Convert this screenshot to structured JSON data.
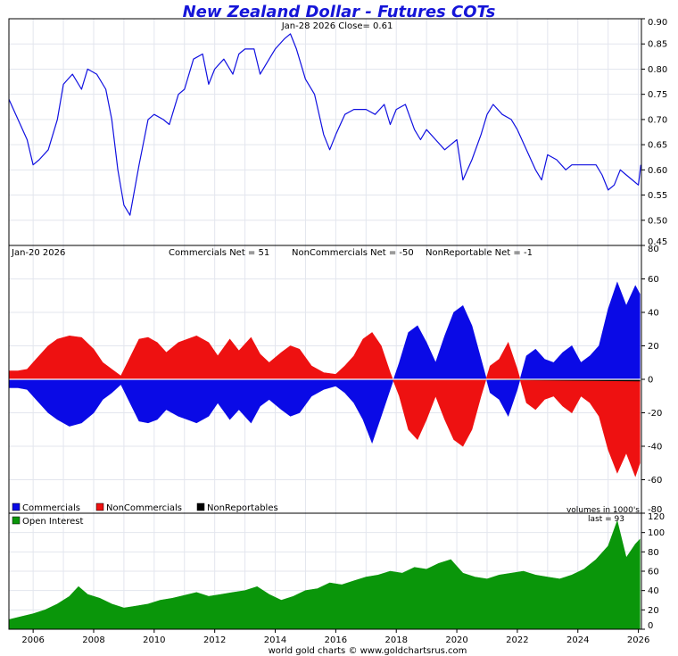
{
  "chart_data": [
    {
      "type": "line",
      "panel": "price",
      "title": "New Zealand Dollar - Futures COTs",
      "annotation": "Jan-28  2026   Close= 0.61",
      "ylim": [
        0.45,
        0.9
      ],
      "yticks": [
        "0.45",
        "0.50",
        "0.55",
        "0.60",
        "0.65",
        "0.70",
        "0.75",
        "0.80",
        "0.85",
        "0.90"
      ],
      "xlim": [
        2005.2,
        2026.1
      ],
      "series": [
        {
          "color": "#1010e0",
          "x": [
            2005.2,
            2005.5,
            2005.8,
            2006.0,
            2006.2,
            2006.5,
            2006.8,
            2007.0,
            2007.3,
            2007.6,
            2007.8,
            2008.1,
            2008.4,
            2008.6,
            2008.8,
            2009.0,
            2009.2,
            2009.5,
            2009.8,
            2010.0,
            2010.3,
            2010.5,
            2010.8,
            2011.0,
            2011.3,
            2011.6,
            2011.8,
            2012.0,
            2012.3,
            2012.6,
            2012.8,
            2013.0,
            2013.3,
            2013.5,
            2013.8,
            2014.0,
            2014.3,
            2014.5,
            2014.7,
            2015.0,
            2015.3,
            2015.6,
            2015.8,
            2016.0,
            2016.3,
            2016.6,
            2016.8,
            2017.0,
            2017.3,
            2017.6,
            2017.8,
            2018.0,
            2018.3,
            2018.6,
            2018.8,
            2019.0,
            2019.3,
            2019.6,
            2019.8,
            2020.0,
            2020.2,
            2020.5,
            2020.8,
            2021.0,
            2021.2,
            2021.5,
            2021.8,
            2022.0,
            2022.3,
            2022.6,
            2022.8,
            2023.0,
            2023.3,
            2023.6,
            2023.8,
            2024.0,
            2024.3,
            2024.6,
            2024.8,
            2025.0,
            2025.2,
            2025.4,
            2025.6,
            2025.8,
            2026.0,
            2026.08
          ],
          "y": [
            0.74,
            0.7,
            0.66,
            0.61,
            0.62,
            0.64,
            0.7,
            0.77,
            0.79,
            0.76,
            0.8,
            0.79,
            0.76,
            0.7,
            0.6,
            0.53,
            0.51,
            0.61,
            0.7,
            0.71,
            0.7,
            0.69,
            0.75,
            0.76,
            0.82,
            0.83,
            0.77,
            0.8,
            0.82,
            0.79,
            0.83,
            0.84,
            0.84,
            0.79,
            0.82,
            0.84,
            0.86,
            0.87,
            0.84,
            0.78,
            0.75,
            0.67,
            0.64,
            0.67,
            0.71,
            0.72,
            0.72,
            0.72,
            0.71,
            0.73,
            0.69,
            0.72,
            0.73,
            0.68,
            0.66,
            0.68,
            0.66,
            0.64,
            0.65,
            0.66,
            0.58,
            0.62,
            0.67,
            0.71,
            0.73,
            0.71,
            0.7,
            0.68,
            0.64,
            0.6,
            0.58,
            0.63,
            0.62,
            0.6,
            0.61,
            0.61,
            0.61,
            0.61,
            0.59,
            0.56,
            0.57,
            0.6,
            0.59,
            0.58,
            0.57,
            0.61
          ]
        }
      ]
    },
    {
      "type": "bar",
      "panel": "net_positions",
      "date_label": "Jan-20  2026",
      "stats": [
        "Commercials Net = 51",
        "NonCommercials Net = -50",
        "NonReportable Net = -1"
      ],
      "ylim": [
        -80,
        80
      ],
      "yticks": [
        "-80",
        "-60",
        "-40",
        "-20",
        "0",
        "20",
        "40",
        "60",
        "80"
      ],
      "xlim": [
        2005.2,
        2026.1
      ],
      "legend": [
        "Commercials",
        "NonCommercials",
        "NonReportables"
      ],
      "series": [
        {
          "name": "Commercials",
          "color": "#0a0ae6",
          "x": [
            2005.2,
            2005.5,
            2005.8,
            2006.1,
            2006.5,
            2006.8,
            2007.2,
            2007.6,
            2008.0,
            2008.3,
            2008.6,
            2008.9,
            2009.2,
            2009.5,
            2009.8,
            2010.1,
            2010.4,
            2010.8,
            2011.1,
            2011.4,
            2011.8,
            2012.1,
            2012.5,
            2012.8,
            2013.2,
            2013.5,
            2013.8,
            2014.2,
            2014.5,
            2014.8,
            2015.2,
            2015.6,
            2016.0,
            2016.3,
            2016.6,
            2016.9,
            2017.2,
            2017.5,
            2017.8,
            2018.1,
            2018.4,
            2018.7,
            2019.0,
            2019.3,
            2019.6,
            2019.9,
            2020.2,
            2020.5,
            2020.8,
            2021.1,
            2021.4,
            2021.7,
            2022.0,
            2022.3,
            2022.6,
            2022.9,
            2023.2,
            2023.5,
            2023.8,
            2024.1,
            2024.4,
            2024.7,
            2025.0,
            2025.3,
            2025.6,
            2025.9,
            2026.05
          ],
          "y": [
            -5,
            -5,
            -6,
            -12,
            -20,
            -24,
            -28,
            -26,
            -20,
            -12,
            -8,
            -3,
            -14,
            -25,
            -26,
            -24,
            -18,
            -22,
            -24,
            -26,
            -22,
            -14,
            -24,
            -18,
            -26,
            -16,
            -12,
            -18,
            -22,
            -20,
            -10,
            -6,
            -4,
            -8,
            -14,
            -24,
            -38,
            -22,
            -6,
            10,
            28,
            32,
            22,
            10,
            26,
            40,
            44,
            32,
            12,
            -8,
            -12,
            -22,
            -6,
            14,
            18,
            12,
            10,
            16,
            20,
            10,
            14,
            20,
            42,
            58,
            44,
            56,
            51
          ]
        },
        {
          "name": "NonCommercials",
          "color": "#ee1111",
          "x": [
            2005.2,
            2005.5,
            2005.8,
            2006.1,
            2006.5,
            2006.8,
            2007.2,
            2007.6,
            2008.0,
            2008.3,
            2008.6,
            2008.9,
            2009.2,
            2009.5,
            2009.8,
            2010.1,
            2010.4,
            2010.8,
            2011.1,
            2011.4,
            2011.8,
            2012.1,
            2012.5,
            2012.8,
            2013.2,
            2013.5,
            2013.8,
            2014.2,
            2014.5,
            2014.8,
            2015.2,
            2015.6,
            2016.0,
            2016.3,
            2016.6,
            2016.9,
            2017.2,
            2017.5,
            2017.8,
            2018.1,
            2018.4,
            2018.7,
            2019.0,
            2019.3,
            2019.6,
            2019.9,
            2020.2,
            2020.5,
            2020.8,
            2021.1,
            2021.4,
            2021.7,
            2022.0,
            2022.3,
            2022.6,
            2022.9,
            2023.2,
            2023.5,
            2023.8,
            2024.1,
            2024.4,
            2024.7,
            2025.0,
            2025.3,
            2025.6,
            2025.9,
            2026.05
          ],
          "y": [
            5,
            5,
            6,
            12,
            20,
            24,
            26,
            25,
            18,
            10,
            6,
            2,
            13,
            24,
            25,
            22,
            16,
            22,
            24,
            26,
            22,
            14,
            24,
            17,
            25,
            15,
            10,
            16,
            20,
            18,
            8,
            4,
            3,
            8,
            14,
            24,
            28,
            20,
            4,
            -10,
            -30,
            -36,
            -24,
            -10,
            -24,
            -36,
            -40,
            -30,
            -10,
            8,
            12,
            22,
            6,
            -14,
            -18,
            -12,
            -10,
            -16,
            -20,
            -10,
            -14,
            -22,
            -42,
            -56,
            -44,
            -58,
            -50
          ]
        },
        {
          "name": "NonReportables",
          "color": "#000000",
          "x": [
            2005.2,
            2010.0,
            2015.0,
            2020.0,
            2026.05
          ],
          "y": [
            0,
            0,
            0,
            0,
            -1
          ]
        }
      ]
    },
    {
      "type": "area",
      "panel": "open_interest",
      "legend": [
        "Open Interest"
      ],
      "units_note": "volumes in 1000's",
      "last_label": "last = 93",
      "ylim": [
        0,
        120
      ],
      "yticks": [
        "0",
        "20",
        "40",
        "60",
        "80",
        "100",
        "120"
      ],
      "xticks": [
        "2006",
        "2008",
        "2010",
        "2012",
        "2014",
        "2016",
        "2018",
        "2020",
        "2022",
        "2024",
        "2026"
      ],
      "xlim": [
        2005.2,
        2026.1
      ],
      "series": [
        {
          "name": "Open Interest",
          "color": "#0a960a",
          "x": [
            2005.2,
            2005.6,
            2006.0,
            2006.4,
            2006.8,
            2007.2,
            2007.5,
            2007.8,
            2008.2,
            2008.6,
            2009.0,
            2009.4,
            2009.8,
            2010.2,
            2010.6,
            2011.0,
            2011.4,
            2011.8,
            2012.2,
            2012.6,
            2013.0,
            2013.4,
            2013.8,
            2014.2,
            2014.6,
            2015.0,
            2015.4,
            2015.8,
            2016.2,
            2016.6,
            2017.0,
            2017.4,
            2017.8,
            2018.2,
            2018.6,
            2019.0,
            2019.4,
            2019.8,
            2020.2,
            2020.6,
            2021.0,
            2021.4,
            2021.8,
            2022.2,
            2022.6,
            2023.0,
            2023.4,
            2023.8,
            2024.2,
            2024.6,
            2025.0,
            2025.3,
            2025.6,
            2025.9,
            2026.05
          ],
          "y": [
            10,
            13,
            16,
            20,
            26,
            34,
            44,
            36,
            32,
            26,
            22,
            24,
            26,
            30,
            32,
            35,
            38,
            34,
            36,
            38,
            40,
            44,
            36,
            30,
            34,
            40,
            42,
            48,
            46,
            50,
            54,
            56,
            60,
            58,
            64,
            62,
            68,
            72,
            58,
            54,
            52,
            56,
            58,
            60,
            56,
            54,
            52,
            56,
            62,
            72,
            86,
            112,
            74,
            88,
            93
          ]
        }
      ]
    }
  ],
  "footer": "world gold charts © www.goldchartsrus.com"
}
